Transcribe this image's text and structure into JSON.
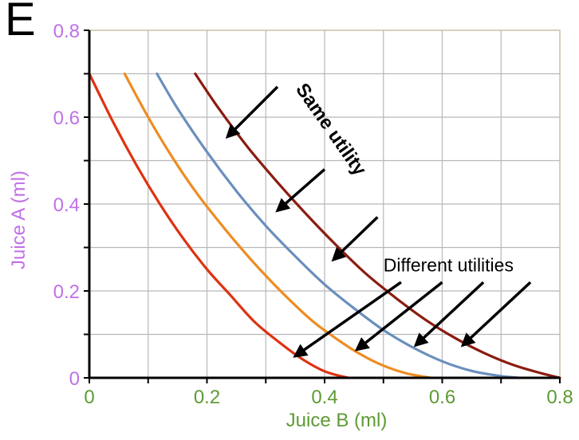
{
  "panel_letter": "E",
  "chart_data": {
    "type": "line",
    "title": "",
    "xlabel": "Juice B (ml)",
    "ylabel": "Juice A (ml)",
    "xlim": [
      0,
      0.8
    ],
    "ylim": [
      0,
      0.8
    ],
    "x_ticks": [
      "0",
      "0.2",
      "0.4",
      "0.6",
      "0.8"
    ],
    "y_ticks": [
      "0",
      "0.2",
      "0.4",
      "0.6",
      "0.8"
    ],
    "grid": true,
    "legend": "none",
    "xlabel_color": "#5e9a34",
    "ylabel_color": "#c070e8",
    "series": [
      {
        "color": "#dd3311",
        "x": [
          0.0,
          0.04,
          0.08,
          0.12,
          0.16,
          0.2,
          0.24,
          0.28,
          0.32,
          0.36,
          0.4,
          0.44
        ],
        "y": [
          0.7,
          0.59,
          0.49,
          0.4,
          0.32,
          0.25,
          0.19,
          0.13,
          0.085,
          0.045,
          0.015,
          0.0
        ]
      },
      {
        "color": "#ee8c22",
        "x": [
          0.06,
          0.1,
          0.14,
          0.18,
          0.22,
          0.26,
          0.3,
          0.34,
          0.38,
          0.42,
          0.46,
          0.5,
          0.54,
          0.58
        ],
        "y": [
          0.7,
          0.6,
          0.51,
          0.43,
          0.36,
          0.295,
          0.235,
          0.18,
          0.13,
          0.09,
          0.055,
          0.028,
          0.01,
          0.0
        ]
      },
      {
        "color": "#6b8fbd",
        "x": [
          0.115,
          0.15,
          0.2,
          0.25,
          0.3,
          0.35,
          0.4,
          0.45,
          0.5,
          0.55,
          0.6,
          0.65,
          0.7,
          0.73
        ],
        "y": [
          0.7,
          0.62,
          0.52,
          0.43,
          0.35,
          0.28,
          0.215,
          0.16,
          0.11,
          0.07,
          0.038,
          0.016,
          0.004,
          0.0
        ]
      },
      {
        "color": "#8b1c10",
        "x": [
          0.18,
          0.22,
          0.27,
          0.32,
          0.37,
          0.42,
          0.47,
          0.52,
          0.57,
          0.62,
          0.67,
          0.72,
          0.77,
          0.8
        ],
        "y": [
          0.7,
          0.62,
          0.53,
          0.45,
          0.375,
          0.305,
          0.24,
          0.185,
          0.135,
          0.093,
          0.058,
          0.03,
          0.01,
          0.0
        ]
      }
    ],
    "annotations": [
      {
        "text": "Same utility",
        "rotation": 55,
        "arrows": [
          {
            "from": [
              0.32,
              0.67
            ],
            "to": [
              0.235,
              0.555
            ]
          },
          {
            "from": [
              0.4,
              0.48
            ],
            "to": [
              0.32,
              0.385
            ]
          },
          {
            "from": [
              0.49,
              0.37
            ],
            "to": [
              0.415,
              0.272
            ]
          }
        ]
      },
      {
        "text": "Different utilities",
        "rotation": 0,
        "arrows": [
          {
            "from": [
              0.53,
              0.22
            ],
            "to": [
              0.35,
              0.05
            ]
          },
          {
            "from": [
              0.6,
              0.22
            ],
            "to": [
              0.455,
              0.065
            ]
          },
          {
            "from": [
              0.67,
              0.22
            ],
            "to": [
              0.555,
              0.075
            ]
          },
          {
            "from": [
              0.75,
              0.22
            ],
            "to": [
              0.635,
              0.075
            ]
          }
        ]
      }
    ]
  }
}
